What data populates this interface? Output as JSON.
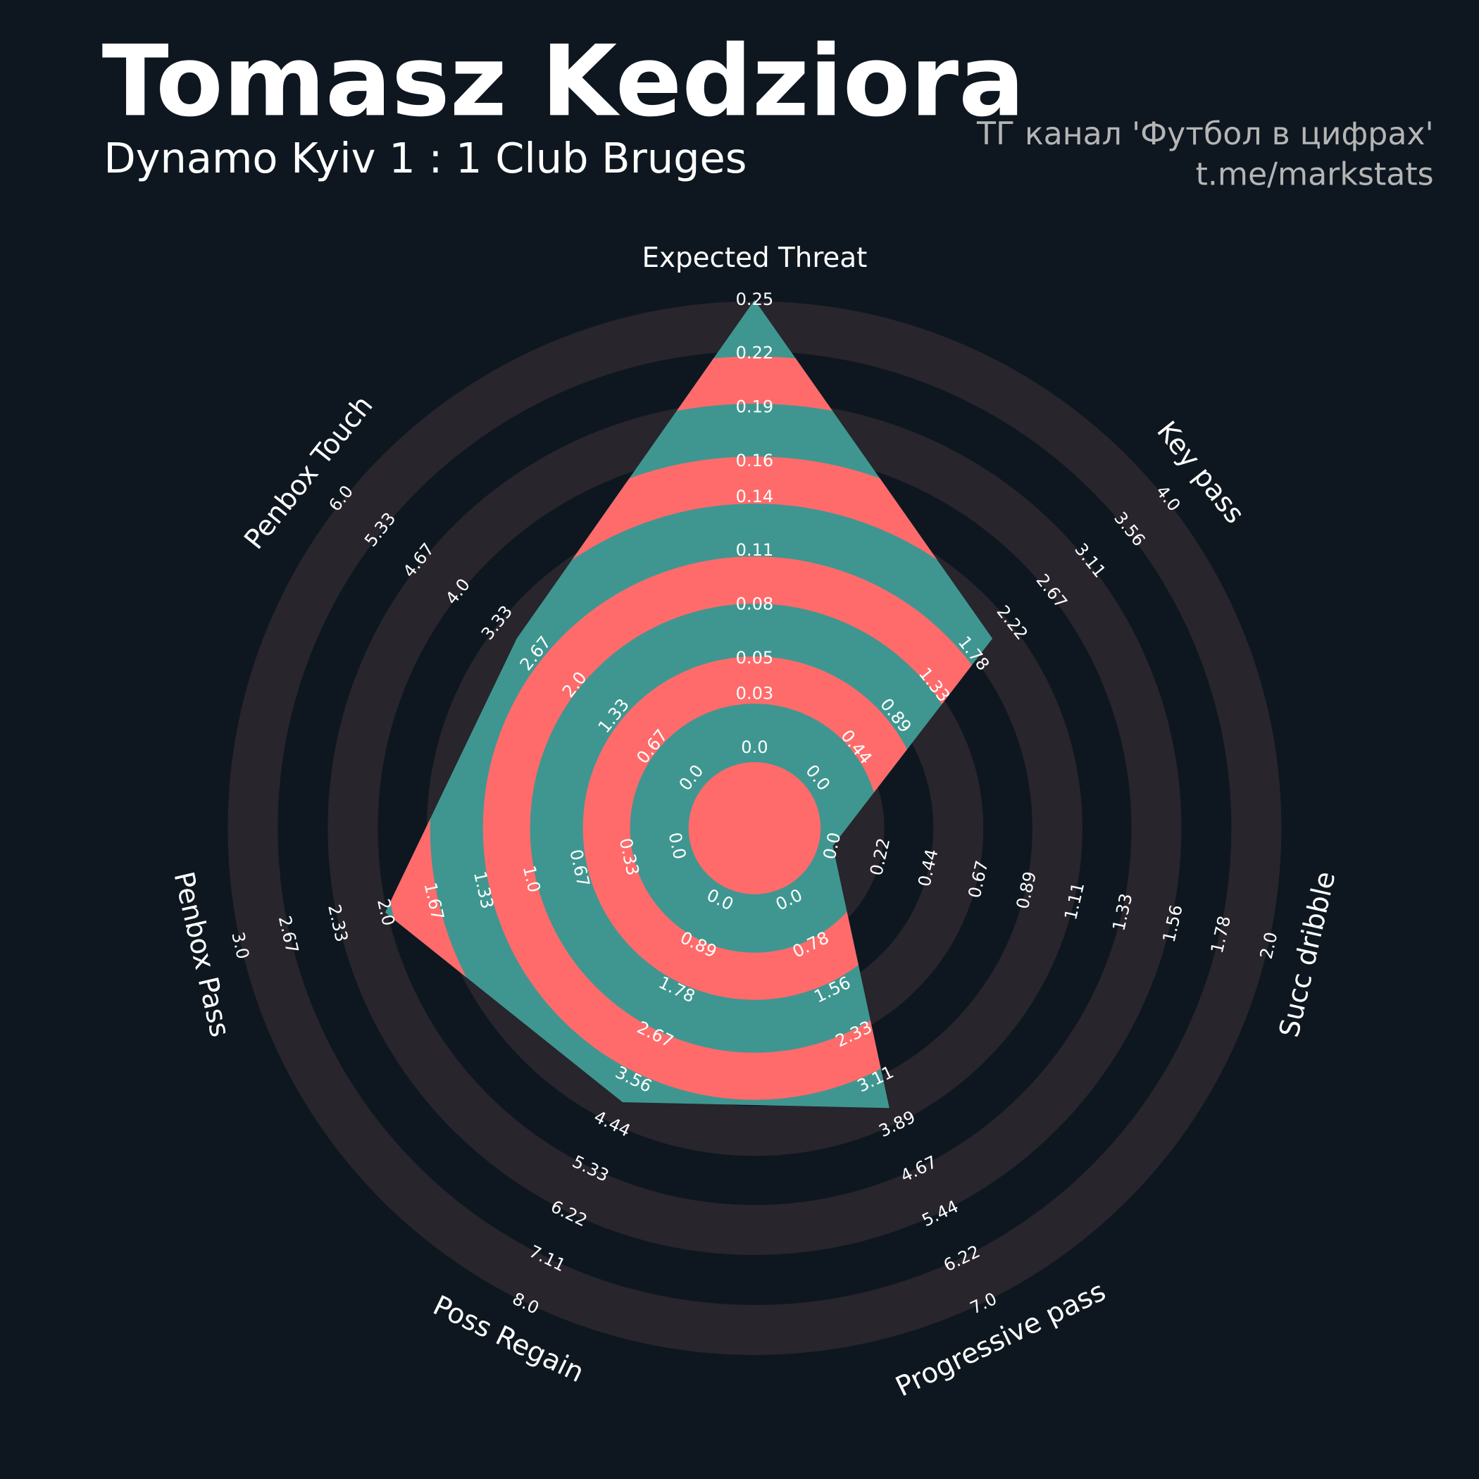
{
  "chart_data": {
    "type": "radar",
    "title": "Tomasz Kedziora",
    "subtitle": "Dynamo Kyiv 1 : 1 Club Bruges",
    "annotations": [
      "ТГ канал 'Футбол в цифрах'",
      "t.me/markstats"
    ],
    "categories": [
      "Expected Threat",
      "Key pass",
      "Succ dribble",
      "Progressive pass",
      "Poss Regain",
      "Penbox Pass",
      "Penbox Touch"
    ],
    "values": [
      0.25,
      2.0,
      0,
      3.6,
      4.0,
      2.0,
      3.0
    ],
    "color": "#3f9690",
    "ring_color": "#ff6b6b",
    "axes": [
      {
        "ylim": [
          0,
          0.25
        ],
        "yticks": [
          {
            "value": 0,
            "label": "0.0"
          },
          0.03,
          0.05,
          0.08,
          0.11,
          0.14,
          0.16,
          0.19,
          0.22,
          0.25
        ]
      },
      {
        "ylim": [
          0,
          4
        ],
        "yticks": [
          {
            "value": 0,
            "label": "0.0"
          },
          0.44,
          0.89,
          1.33,
          1.78,
          2.22,
          2.67,
          3.11,
          3.56,
          {
            "value": 4,
            "label": "4.0"
          }
        ]
      },
      {
        "ylim": [
          0,
          2
        ],
        "yticks": [
          {
            "value": 0,
            "label": "0.0"
          },
          0.22,
          0.44,
          0.67,
          0.89,
          1.11,
          1.33,
          1.56,
          1.78,
          {
            "value": 2,
            "label": "2.0"
          }
        ]
      },
      {
        "ylim": [
          0,
          7
        ],
        "yticks": [
          {
            "value": 0,
            "label": "0.0"
          },
          0.78,
          1.56,
          2.33,
          3.11,
          3.89,
          4.67,
          5.44,
          6.22,
          {
            "value": 7,
            "label": "7.0"
          }
        ]
      },
      {
        "ylim": [
          0,
          8
        ],
        "yticks": [
          {
            "value": 0,
            "label": "0.0"
          },
          0.89,
          1.78,
          2.67,
          3.56,
          4.44,
          5.33,
          6.22,
          7.11,
          {
            "value": 8,
            "label": "8.0"
          }
        ]
      },
      {
        "ylim": [
          0,
          3
        ],
        "yticks": [
          {
            "value": 0,
            "label": "0.0"
          },
          0.33,
          0.67,
          {
            "value": 1,
            "label": "1.0"
          },
          1.33,
          1.67,
          {
            "value": 2,
            "label": "2.0"
          },
          2.33,
          2.67,
          {
            "value": 3,
            "label": "3.0"
          }
        ]
      },
      {
        "ylim": [
          0,
          6
        ],
        "yticks": [
          {
            "value": 0,
            "label": "0.0"
          },
          0.67,
          1.33,
          {
            "value": 2,
            "label": "2.0"
          },
          2.67,
          3.33,
          {
            "value": 4,
            "label": "4.0"
          },
          4.67,
          5.33,
          {
            "value": 6,
            "label": "6.0"
          }
        ]
      }
    ]
  }
}
